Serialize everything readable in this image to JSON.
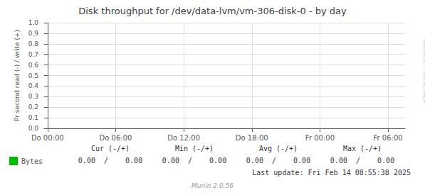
{
  "chart_data": {
    "type": "line",
    "title": "Disk throughput for /dev/data-lvm/vm-306-disk-0 - by day",
    "y_label": "Pr second read (-) / write (+)",
    "xlim": [
      -0.05,
      5.25
    ],
    "xticks": [
      {
        "value": 0,
        "label": "Do 00:00"
      },
      {
        "value": 1,
        "label": "Do 06:00"
      },
      {
        "value": 2,
        "label": "Do 12:00"
      },
      {
        "value": 3,
        "label": "Do 18:00"
      },
      {
        "value": 4,
        "label": "Fr 00:00"
      },
      {
        "value": 5,
        "label": "Fr 06:00"
      }
    ],
    "ylim": [
      0.0,
      1.0
    ],
    "yticks": [
      {
        "value": 0.0,
        "label": "0.0"
      },
      0.1,
      0.2,
      0.3,
      0.4,
      0.5,
      0.6,
      0.7,
      0.8,
      0.9,
      {
        "value": 1.0,
        "label": "1.0"
      }
    ],
    "grid": true,
    "legend": "bottom left",
    "series": [
      {
        "name": "Bytes",
        "color": "#00bb00",
        "x": [],
        "values": []
      }
    ],
    "stats": {
      "columns": [
        "Cur (-/+)",
        "Min (-/+)",
        "Avg (-/+)",
        "Max (-/+)"
      ],
      "values": [
        [
          0.0,
          0.0
        ],
        [
          0.0,
          0.0
        ],
        [
          0.0,
          0.0
        ],
        [
          0.0,
          0.0
        ]
      ],
      "value_labels": [
        "0.00  /    0.00",
        "0.00  /    0.00",
        "0.00  /    0.00",
        "0.00  /    0.00"
      ]
    },
    "annotations": [
      "Last update: Fri Feb 14 08:55:38 2025",
      "Munin 2.0.56",
      "RRDTOOL / TOBI OETIKER"
    ]
  }
}
